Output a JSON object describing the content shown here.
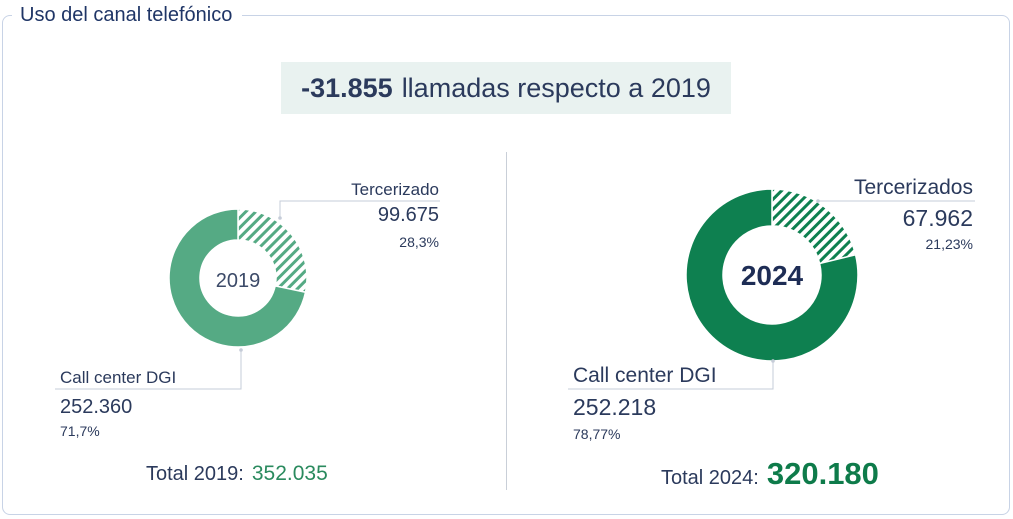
{
  "frame_title": "Uso del canal telefónico",
  "headline": {
    "value": "-31.855",
    "text": "llamadas respecto a 2019"
  },
  "chart_data": [
    {
      "type": "pie",
      "title": "2019",
      "series": [
        {
          "name": "Call center DGI",
          "value": 252360,
          "value_label": "252.360",
          "percent_label": "71,7%",
          "color": "#55aa84",
          "pattern": "solid"
        },
        {
          "name": "Tercerizado",
          "value": 99675,
          "value_label": "99.675",
          "percent_label": "28,3%",
          "color": "#55aa84",
          "pattern": "hatched"
        }
      ],
      "total_label": "Total 2019:",
      "total_value": "352.035"
    },
    {
      "type": "pie",
      "title": "2024",
      "series": [
        {
          "name": "Call center DGI",
          "value": 252218,
          "value_label": "252.218",
          "percent_label": "78,77%",
          "color": "#0e8050",
          "pattern": "solid"
        },
        {
          "name": "Tercerizados",
          "value": 67962,
          "value_label": "67.962",
          "percent_label": "21,23%",
          "color": "#0e8050",
          "pattern": "hatched"
        }
      ],
      "total_label": "Total 2024:",
      "total_value": "320.180"
    }
  ]
}
